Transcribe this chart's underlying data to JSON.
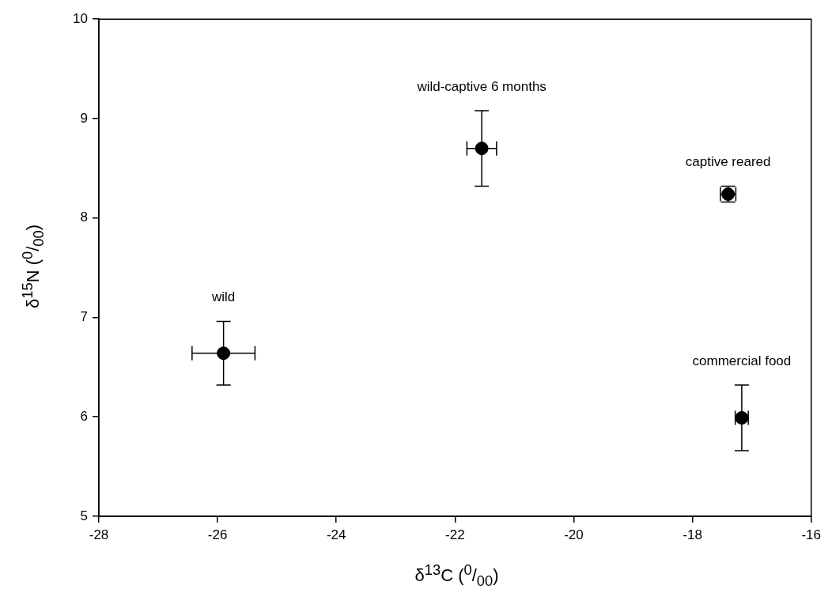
{
  "chart_data": {
    "type": "scatter",
    "xlabel": "δ$^{13}$C  ($^{0}$/$_{00}$)",
    "ylabel": "δ$^{15}$N ($^{0}$/$_{00}$)",
    "xlim": [
      -28,
      -16
    ],
    "xticks": [
      -28,
      -26,
      -24,
      -22,
      -20,
      -18,
      -16
    ],
    "ylim": [
      5,
      10
    ],
    "yticks": [
      5,
      6,
      7,
      8,
      9,
      10
    ],
    "grid": false,
    "legend": false,
    "marker": "circle",
    "series": [
      {
        "color": "#000000",
        "x": [
          -25.9,
          -21.55,
          -17.4,
          -17.17
        ],
        "values": [
          6.64,
          8.7,
          8.24,
          5.99
        ],
        "errors": [
          0.32,
          0.38,
          0.08,
          0.33
        ],
        "xerrors": [
          0.53,
          0.25,
          0.13,
          0.11
        ]
      }
    ],
    "annotations": [
      "wild",
      "wild-captive 6 months",
      "captive reared",
      "commercial food"
    ]
  }
}
